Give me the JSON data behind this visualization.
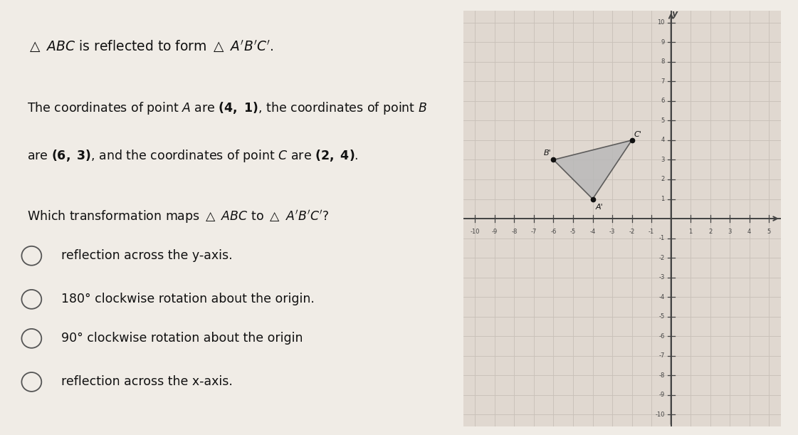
{
  "title_text": "△ ABC is reflected to form △ A′B′C′.",
  "desc_line1": "The coordinates of point A are (4, 1), the coordinates of point B",
  "desc_line2": "are (6, 3), and the coordinates of point C are (2, 4).",
  "question": "Which transformation maps △ ABC to △ A′B′C′?",
  "options": [
    "reflection across the y-axis.",
    "180° clockwise rotation about the origin.",
    "90° clockwise rotation about the origin",
    "reflection across the x-axis."
  ],
  "A": [
    4,
    1
  ],
  "B": [
    6,
    3
  ],
  "C": [
    2,
    4
  ],
  "Ap": [
    -4,
    1
  ],
  "Bp": [
    -6,
    3
  ],
  "Cp": [
    -2,
    4
  ],
  "triangle_fill_color": "#b8b8b8",
  "triangle_edge_color": "#444444",
  "point_color": "#111111",
  "axis_color": "#444444",
  "grid_color": "#c8c0b8",
  "background_color": "#f0ece6",
  "panel_background": "#e0d8d0",
  "text_color": "#111111",
  "xlim": [
    -10.6,
    5.6
  ],
  "ylim": [
    -10.6,
    10.6
  ],
  "xticks": [
    -10,
    -9,
    -8,
    -7,
    -6,
    -5,
    -4,
    -3,
    -2,
    -1,
    1,
    2,
    3,
    4,
    5
  ],
  "yticks": [
    -10,
    -9,
    -8,
    -7,
    -6,
    -5,
    -4,
    -3,
    -2,
    -1,
    1,
    2,
    3,
    4,
    5,
    6,
    7,
    8,
    9,
    10
  ]
}
